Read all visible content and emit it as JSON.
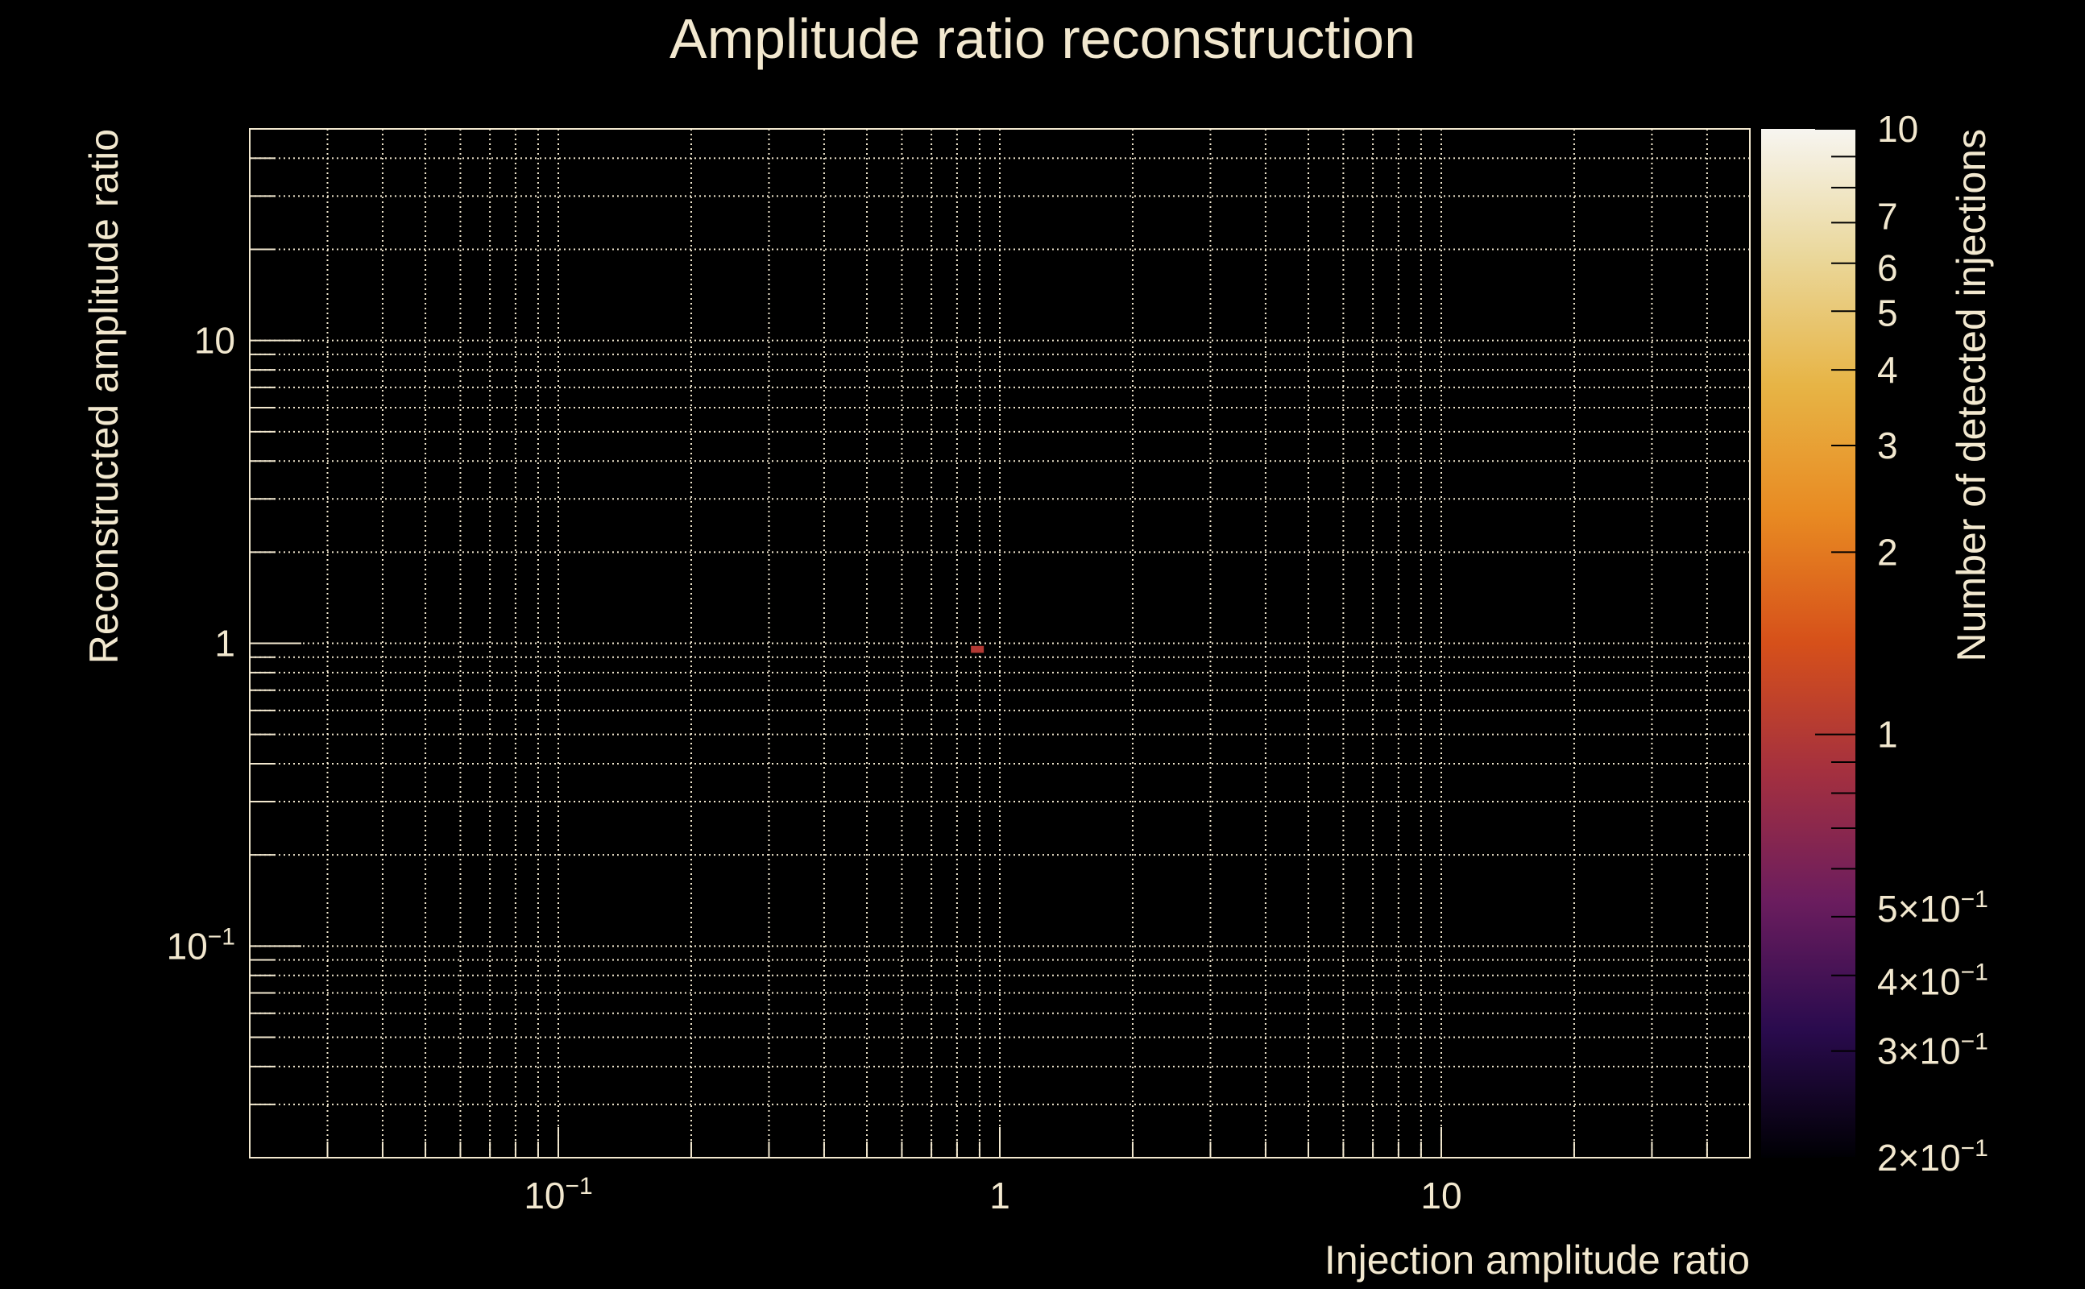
{
  "chart_data": {
    "type": "heatmap",
    "title": "Amplitude ratio reconstruction",
    "xlabel": "Injection amplitude ratio",
    "ylabel": "Reconstructed amplitude ratio",
    "zlabel": "Number of detected injections",
    "xscale": "log",
    "yscale": "log",
    "zscale": "log",
    "xlim": [
      0.02,
      50
    ],
    "ylim": [
      0.02,
      50
    ],
    "zlim": [
      0.2,
      10
    ],
    "grid": true,
    "x_ticks": [
      {
        "value": 0.1,
        "base": "10",
        "exp": "−1"
      },
      {
        "value": 1,
        "base": "1",
        "exp": ""
      },
      {
        "value": 10,
        "base": "10",
        "exp": ""
      }
    ],
    "y_ticks": [
      {
        "value": 10,
        "base": "10",
        "exp": ""
      },
      {
        "value": 1,
        "base": "1",
        "exp": ""
      },
      {
        "value": 0.1,
        "base": "10",
        "exp": "−1"
      }
    ],
    "z_ticks": [
      {
        "value": 10,
        "base": "10",
        "exp": ""
      },
      {
        "value": 7,
        "base": "7",
        "exp": ""
      },
      {
        "value": 6,
        "base": "6",
        "exp": ""
      },
      {
        "value": 5,
        "base": "5",
        "exp": ""
      },
      {
        "value": 4,
        "base": "4",
        "exp": ""
      },
      {
        "value": 3,
        "base": "3",
        "exp": ""
      },
      {
        "value": 2,
        "base": "2",
        "exp": ""
      },
      {
        "value": 1,
        "base": "1",
        "exp": ""
      },
      {
        "value": 0.5,
        "base": "5×10",
        "exp": "−1"
      },
      {
        "value": 0.4,
        "base": "4×10",
        "exp": "−1"
      },
      {
        "value": 0.3,
        "base": "3×10",
        "exp": "−1"
      },
      {
        "value": 0.2,
        "base": "2×10",
        "exp": "−1"
      }
    ],
    "bins": [
      {
        "x0": 0.86,
        "x1": 0.92,
        "y0": 0.93,
        "y1": 0.98,
        "value": 1
      }
    ],
    "colormap": [
      "#000004",
      "#2a0b4e",
      "#6b1d5e",
      "#a4303f",
      "#d6501a",
      "#e88a22",
      "#e7b445",
      "#ead79a",
      "#f7f5f0"
    ],
    "text_color": "#f2e8cf",
    "grid_color": "#f2e8cf"
  }
}
